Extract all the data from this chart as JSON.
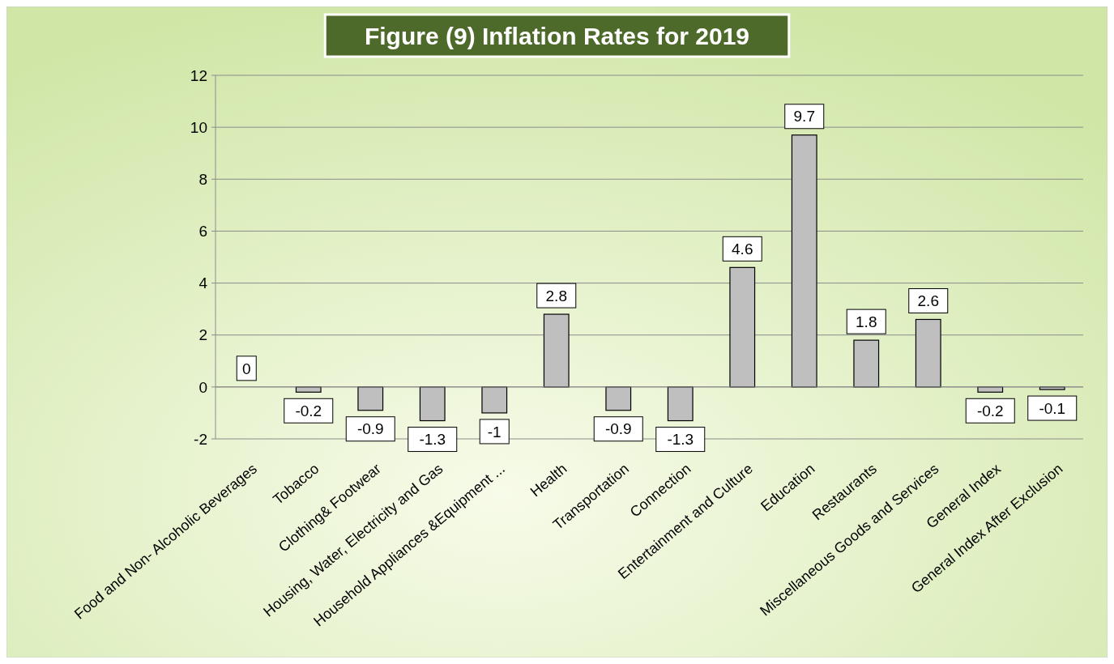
{
  "chart_data": {
    "type": "bar",
    "title": "Figure (9) Inflation Rates for 2019",
    "categories": [
      "Food and Non- Alcoholic Beverages",
      "Tobacco",
      "Clothing& Footwear",
      "Housing, Water, Electricity and Gas",
      "Household Appliances &Equipment ...",
      "Health",
      "Transportation",
      "Connection",
      "Entertainment and Culture",
      "Education",
      "Restaurants",
      "Miscellaneous Goods and Services",
      "General Index",
      "General Index After Exclusion"
    ],
    "values": [
      0,
      -0.2,
      -0.9,
      -1.3,
      -1,
      2.8,
      -0.9,
      -1.3,
      4.6,
      9.7,
      1.8,
      2.6,
      -0.2,
      -0.1
    ],
    "color": "#bfbfbf",
    "ylim": [
      -2,
      12
    ],
    "yticks": [
      -2,
      0,
      2,
      4,
      6,
      8,
      10,
      12
    ],
    "grid": "y",
    "data_labels": true
  }
}
